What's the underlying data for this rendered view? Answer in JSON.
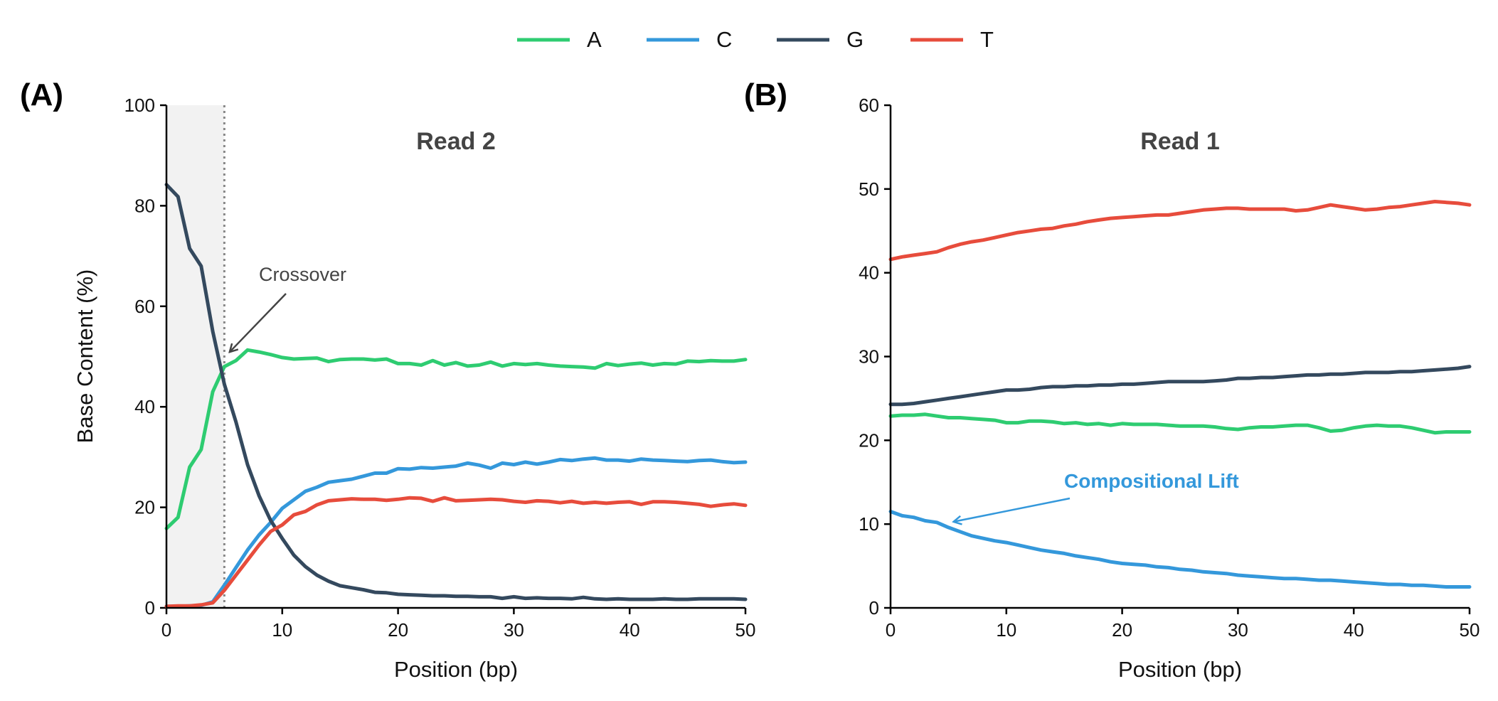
{
  "legend": {
    "items": [
      {
        "label": "A",
        "color": "#2ecc71"
      },
      {
        "label": "C",
        "color": "#3498db"
      },
      {
        "label": "G",
        "color": "#34495e"
      },
      {
        "label": "T",
        "color": "#e74c3c"
      }
    ]
  },
  "chart_data": [
    {
      "type": "line",
      "panel_label": "(A)",
      "title": "Read 2",
      "xlabel": "Position (bp)",
      "ylabel": "Base Content (%)",
      "xlim": [
        0,
        50
      ],
      "ylim": [
        0,
        100
      ],
      "xticks": [
        0,
        10,
        20,
        30,
        40,
        50
      ],
      "yticks": [
        0,
        20,
        40,
        60,
        80,
        100
      ],
      "shaded_region": [
        0,
        5
      ],
      "vline": 5,
      "annotation": {
        "text": "Crossover",
        "point": [
          5.5,
          51
        ],
        "text_at": [
          8,
          66
        ]
      },
      "series": [
        {
          "name": "A",
          "color": "#2ecc71",
          "x": [
            0,
            1,
            2,
            3,
            4,
            5,
            6,
            7,
            8,
            9,
            10,
            11,
            12,
            13,
            14,
            15,
            16,
            17,
            18,
            19,
            20,
            21,
            22,
            23,
            24,
            25,
            26,
            27,
            28,
            29,
            30,
            31,
            32,
            33,
            34,
            35,
            36,
            37,
            38,
            39,
            40,
            41,
            42,
            43,
            44,
            45,
            46,
            47,
            48,
            49,
            50
          ],
          "values": [
            15.8,
            18,
            28,
            31.5,
            43,
            48,
            49.2,
            51.3,
            50.9,
            50.4,
            49.8,
            49.5,
            49.6,
            49.7,
            49,
            49.4,
            49.5,
            49.5,
            49.3,
            49.5,
            48.6,
            48.6,
            48.3,
            49.2,
            48.3,
            48.8,
            48.1,
            48.3,
            48.9,
            48.1,
            48.6,
            48.4,
            48.6,
            48.3,
            48.1,
            48,
            47.9,
            47.7,
            48.6,
            48.2,
            48.5,
            48.7,
            48.3,
            48.6,
            48.5,
            49.1,
            49,
            49.2,
            49.1,
            49.1,
            49.4
          ]
        },
        {
          "name": "C",
          "color": "#3498db",
          "x": [
            0,
            1,
            2,
            3,
            4,
            5,
            6,
            7,
            8,
            9,
            10,
            11,
            12,
            13,
            14,
            15,
            16,
            17,
            18,
            19,
            20,
            21,
            22,
            23,
            24,
            25,
            26,
            27,
            28,
            29,
            30,
            31,
            32,
            33,
            34,
            35,
            36,
            37,
            38,
            39,
            40,
            41,
            42,
            43,
            44,
            45,
            46,
            47,
            48,
            49,
            50
          ],
          "values": [
            0.3,
            0.3,
            0.4,
            0.5,
            1.2,
            4.5,
            8,
            11.5,
            14.5,
            17,
            19.8,
            21.5,
            23.2,
            24,
            25,
            25.3,
            25.6,
            26.2,
            26.8,
            26.8,
            27.7,
            27.6,
            27.9,
            27.8,
            28,
            28.2,
            28.8,
            28.4,
            27.8,
            28.8,
            28.5,
            29,
            28.6,
            29,
            29.5,
            29.3,
            29.6,
            29.8,
            29.4,
            29.4,
            29.2,
            29.6,
            29.4,
            29.3,
            29.2,
            29.1,
            29.3,
            29.4,
            29.1,
            28.9,
            29
          ]
        },
        {
          "name": "G",
          "color": "#34495e",
          "x": [
            0,
            1,
            2,
            3,
            4,
            5,
            6,
            7,
            8,
            9,
            10,
            11,
            12,
            13,
            14,
            15,
            16,
            17,
            18,
            19,
            20,
            21,
            22,
            23,
            24,
            25,
            26,
            27,
            28,
            29,
            30,
            31,
            32,
            33,
            34,
            35,
            36,
            37,
            38,
            39,
            40,
            41,
            42,
            43,
            44,
            45,
            46,
            47,
            48,
            49,
            50
          ],
          "values": [
            84.2,
            81.8,
            71.5,
            68,
            55,
            44.5,
            37,
            28.5,
            22.3,
            17.4,
            13.8,
            10.5,
            8.2,
            6.5,
            5.3,
            4.4,
            4,
            3.6,
            3.1,
            3,
            2.7,
            2.6,
            2.5,
            2.4,
            2.4,
            2.3,
            2.3,
            2.2,
            2.2,
            1.9,
            2.2,
            1.9,
            2,
            1.9,
            1.9,
            1.8,
            2.1,
            1.8,
            1.7,
            1.8,
            1.7,
            1.7,
            1.7,
            1.8,
            1.7,
            1.7,
            1.8,
            1.8,
            1.8,
            1.8,
            1.7
          ]
        },
        {
          "name": "T",
          "color": "#e74c3c",
          "x": [
            0,
            1,
            2,
            3,
            4,
            5,
            6,
            7,
            8,
            9,
            10,
            11,
            12,
            13,
            14,
            15,
            16,
            17,
            18,
            19,
            20,
            21,
            22,
            23,
            24,
            25,
            26,
            27,
            28,
            29,
            30,
            31,
            32,
            33,
            34,
            35,
            36,
            37,
            38,
            39,
            40,
            41,
            42,
            43,
            44,
            45,
            46,
            47,
            48,
            49,
            50
          ],
          "values": [
            0.3,
            0.4,
            0.4,
            0.6,
            1,
            3.5,
            6.5,
            9.5,
            12.5,
            15.2,
            16.5,
            18.5,
            19.2,
            20.5,
            21.3,
            21.5,
            21.7,
            21.6,
            21.6,
            21.4,
            21.6,
            21.9,
            21.8,
            21.2,
            21.9,
            21.3,
            21.4,
            21.5,
            21.6,
            21.5,
            21.2,
            21,
            21.3,
            21.2,
            20.9,
            21.2,
            20.8,
            21,
            20.8,
            21,
            21.1,
            20.6,
            21.1,
            21.1,
            21,
            20.8,
            20.6,
            20.2,
            20.5,
            20.7,
            20.4
          ]
        }
      ]
    },
    {
      "type": "line",
      "panel_label": "(B)",
      "title": "Read 1",
      "xlabel": "Position (bp)",
      "ylabel": "",
      "xlim": [
        0,
        50
      ],
      "ylim": [
        0,
        60
      ],
      "xticks": [
        0,
        10,
        20,
        30,
        40,
        50
      ],
      "yticks": [
        0,
        10,
        20,
        30,
        40,
        50,
        60
      ],
      "annotation": {
        "text": "Compositional Lift",
        "point": [
          5.5,
          10.3
        ],
        "text_at": [
          15,
          14.8
        ]
      },
      "series": [
        {
          "name": "A",
          "color": "#2ecc71",
          "x": [
            0,
            1,
            2,
            3,
            4,
            5,
            6,
            7,
            8,
            9,
            10,
            11,
            12,
            13,
            14,
            15,
            16,
            17,
            18,
            19,
            20,
            21,
            22,
            23,
            24,
            25,
            26,
            27,
            28,
            29,
            30,
            31,
            32,
            33,
            34,
            35,
            36,
            37,
            38,
            39,
            40,
            41,
            42,
            43,
            44,
            45,
            46,
            47,
            48,
            49,
            50
          ],
          "values": [
            22.9,
            23,
            23,
            23.1,
            22.9,
            22.7,
            22.7,
            22.6,
            22.5,
            22.4,
            22.1,
            22.1,
            22.3,
            22.3,
            22.2,
            22,
            22.1,
            21.9,
            22,
            21.8,
            22,
            21.9,
            21.9,
            21.9,
            21.8,
            21.7,
            21.7,
            21.7,
            21.6,
            21.4,
            21.3,
            21.5,
            21.6,
            21.6,
            21.7,
            21.8,
            21.8,
            21.5,
            21.1,
            21.2,
            21.5,
            21.7,
            21.8,
            21.7,
            21.7,
            21.5,
            21.2,
            20.9,
            21,
            21,
            21
          ]
        },
        {
          "name": "C",
          "color": "#3498db",
          "x": [
            0,
            1,
            2,
            3,
            4,
            5,
            6,
            7,
            8,
            9,
            10,
            11,
            12,
            13,
            14,
            15,
            16,
            17,
            18,
            19,
            20,
            21,
            22,
            23,
            24,
            25,
            26,
            27,
            28,
            29,
            30,
            31,
            32,
            33,
            34,
            35,
            36,
            37,
            38,
            39,
            40,
            41,
            42,
            43,
            44,
            45,
            46,
            47,
            48,
            49,
            50
          ],
          "values": [
            11.5,
            11,
            10.8,
            10.4,
            10.2,
            9.6,
            9.1,
            8.6,
            8.3,
            8,
            7.8,
            7.5,
            7.2,
            6.9,
            6.7,
            6.5,
            6.2,
            6,
            5.8,
            5.5,
            5.3,
            5.2,
            5.1,
            4.9,
            4.8,
            4.6,
            4.5,
            4.3,
            4.2,
            4.1,
            3.9,
            3.8,
            3.7,
            3.6,
            3.5,
            3.5,
            3.4,
            3.3,
            3.3,
            3.2,
            3.1,
            3,
            2.9,
            2.8,
            2.8,
            2.7,
            2.7,
            2.6,
            2.5,
            2.5,
            2.5
          ]
        },
        {
          "name": "G",
          "color": "#34495e",
          "x": [
            0,
            1,
            2,
            3,
            4,
            5,
            6,
            7,
            8,
            9,
            10,
            11,
            12,
            13,
            14,
            15,
            16,
            17,
            18,
            19,
            20,
            21,
            22,
            23,
            24,
            25,
            26,
            27,
            28,
            29,
            30,
            31,
            32,
            33,
            34,
            35,
            36,
            37,
            38,
            39,
            40,
            41,
            42,
            43,
            44,
            45,
            46,
            47,
            48,
            49,
            50
          ],
          "values": [
            24.3,
            24.3,
            24.4,
            24.6,
            24.8,
            25,
            25.2,
            25.4,
            25.6,
            25.8,
            26,
            26,
            26.1,
            26.3,
            26.4,
            26.4,
            26.5,
            26.5,
            26.6,
            26.6,
            26.7,
            26.7,
            26.8,
            26.9,
            27,
            27,
            27,
            27,
            27.1,
            27.2,
            27.4,
            27.4,
            27.5,
            27.5,
            27.6,
            27.7,
            27.8,
            27.8,
            27.9,
            27.9,
            28,
            28.1,
            28.1,
            28.1,
            28.2,
            28.2,
            28.3,
            28.4,
            28.5,
            28.6,
            28.8
          ]
        },
        {
          "name": "T",
          "color": "#e74c3c",
          "x": [
            0,
            1,
            2,
            3,
            4,
            5,
            6,
            7,
            8,
            9,
            10,
            11,
            12,
            13,
            14,
            15,
            16,
            17,
            18,
            19,
            20,
            21,
            22,
            23,
            24,
            25,
            26,
            27,
            28,
            29,
            30,
            31,
            32,
            33,
            34,
            35,
            36,
            37,
            38,
            39,
            40,
            41,
            42,
            43,
            44,
            45,
            46,
            47,
            48,
            49,
            50
          ],
          "values": [
            41.6,
            41.9,
            42.1,
            42.3,
            42.5,
            43,
            43.4,
            43.7,
            43.9,
            44.2,
            44.5,
            44.8,
            45,
            45.2,
            45.3,
            45.6,
            45.8,
            46.1,
            46.3,
            46.5,
            46.6,
            46.7,
            46.8,
            46.9,
            46.9,
            47.1,
            47.3,
            47.5,
            47.6,
            47.7,
            47.7,
            47.6,
            47.6,
            47.6,
            47.6,
            47.4,
            47.5,
            47.8,
            48.1,
            47.9,
            47.7,
            47.5,
            47.6,
            47.8,
            47.9,
            48.1,
            48.3,
            48.5,
            48.4,
            48.3,
            48.1
          ]
        }
      ]
    }
  ]
}
